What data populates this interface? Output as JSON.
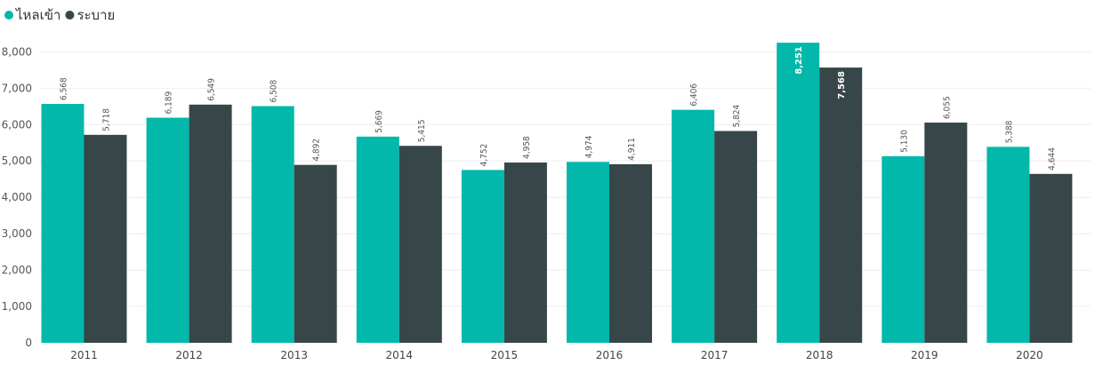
{
  "chart_data": {
    "type": "bar",
    "categories": [
      "2011",
      "2012",
      "2013",
      "2014",
      "2015",
      "2016",
      "2017",
      "2018",
      "2019",
      "2020"
    ],
    "series": [
      {
        "name": "ไหลเข้า",
        "color": "#01B8AA",
        "values": [
          6568,
          6189,
          6508,
          5669,
          4752,
          4974,
          6406,
          8251,
          5130,
          5388
        ]
      },
      {
        "name": "ระบาย",
        "color": "#374649",
        "values": [
          5718,
          6549,
          4892,
          5415,
          4958,
          4911,
          5824,
          7568,
          6055,
          4644
        ]
      }
    ],
    "data_labels": [
      [
        "6,568",
        "6,189",
        "6,508",
        "5,669",
        "4,752",
        "4,974",
        "6,406",
        "8,251",
        "5,130",
        "5,388"
      ],
      [
        "5,718",
        "6,549",
        "4,892",
        "5,415",
        "4,958",
        "4,911",
        "5,824",
        "7,568",
        "6,055",
        "4,644"
      ]
    ],
    "yticks": [
      0,
      1000,
      2000,
      3000,
      4000,
      5000,
      6000,
      7000,
      8000
    ],
    "ytick_labels": [
      "0",
      "1,000",
      "2,000",
      "3,000",
      "4,000",
      "5,000",
      "6,000",
      "7,000",
      "8,000"
    ],
    "ylim": [
      0,
      8400
    ],
    "legend_position": "top-left",
    "grid": true
  }
}
